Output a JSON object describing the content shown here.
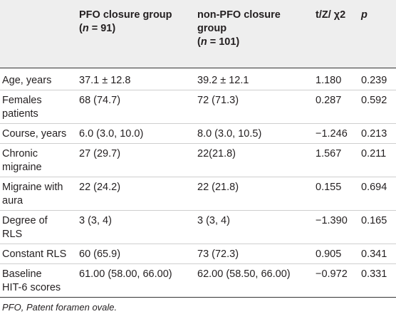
{
  "table": {
    "headers": {
      "col_label": "",
      "pfo_line1": "PFO closure group",
      "pfo_n_prefix": "(",
      "pfo_n_italic": "n",
      "pfo_n_suffix": " = 91)",
      "nonpfo_line1": "non-PFO closure",
      "nonpfo_line2": "group",
      "nonpfo_n_prefix": "(",
      "nonpfo_n_italic": "n",
      "nonpfo_n_suffix": " = 101)",
      "stat": "t/Z/ χ2",
      "p": "p"
    },
    "rows": [
      {
        "label_1": "Age, years",
        "label_2": "",
        "pfo": "37.1 ± 12.8",
        "nonpfo": "39.2 ± 12.1",
        "stat": "1.180",
        "p": "0.239"
      },
      {
        "label_1": "Females",
        "label_2": "patients",
        "pfo": "68 (74.7)",
        "nonpfo": "72 (71.3)",
        "stat": "0.287",
        "p": "0.592"
      },
      {
        "label_1": "Course, years",
        "label_2": "",
        "pfo": "6.0 (3.0, 10.0)",
        "nonpfo": "8.0 (3.0, 10.5)",
        "stat": "−1.246",
        "p": "0.213"
      },
      {
        "label_1": "Chronic",
        "label_2": "migraine",
        "pfo": "27 (29.7)",
        "nonpfo": "22(21.8)",
        "stat": "1.567",
        "p": "0.211"
      },
      {
        "label_1": "Migraine with",
        "label_2": "aura",
        "pfo": "22 (24.2)",
        "nonpfo": "22 (21.8)",
        "stat": "0.155",
        "p": "0.694"
      },
      {
        "label_1": "Degree of",
        "label_2": "RLS",
        "pfo": "3 (3, 4)",
        "nonpfo": "3 (3, 4)",
        "stat": "−1.390",
        "p": "0.165"
      },
      {
        "label_1": "Constant RLS",
        "label_2": "",
        "pfo": "60 (65.9)",
        "nonpfo": "73 (72.3)",
        "stat": "0.905",
        "p": "0.341"
      },
      {
        "label_1": "Baseline",
        "label_2": "HIT-6 scores",
        "pfo": "61.00 (58.00, 66.00)",
        "nonpfo": "62.00 (58.50, 66.00)",
        "stat": "−0.972",
        "p": "0.331"
      }
    ]
  },
  "footnote": "PFO, Patent foramen ovale."
}
